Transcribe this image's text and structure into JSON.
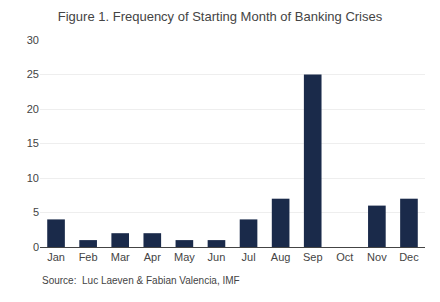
{
  "chart_data": {
    "type": "bar",
    "title": "Figure 1. Frequency of Starting Month of Banking Crises",
    "categories": [
      "Jan",
      "Feb",
      "Mar",
      "Apr",
      "May",
      "Jun",
      "Jul",
      "Aug",
      "Sep",
      "Oct",
      "Nov",
      "Dec"
    ],
    "values": [
      4,
      1,
      2,
      2,
      1,
      1,
      4,
      7,
      25,
      0,
      6,
      7
    ],
    "color": "#1a2a4a",
    "ylim": [
      0,
      30
    ],
    "yticks": [
      0,
      5,
      10,
      15,
      20,
      25,
      30
    ],
    "grid": true,
    "annotations": [
      "Source:  Luc Laeven & Fabian Valencia, IMF"
    ]
  }
}
